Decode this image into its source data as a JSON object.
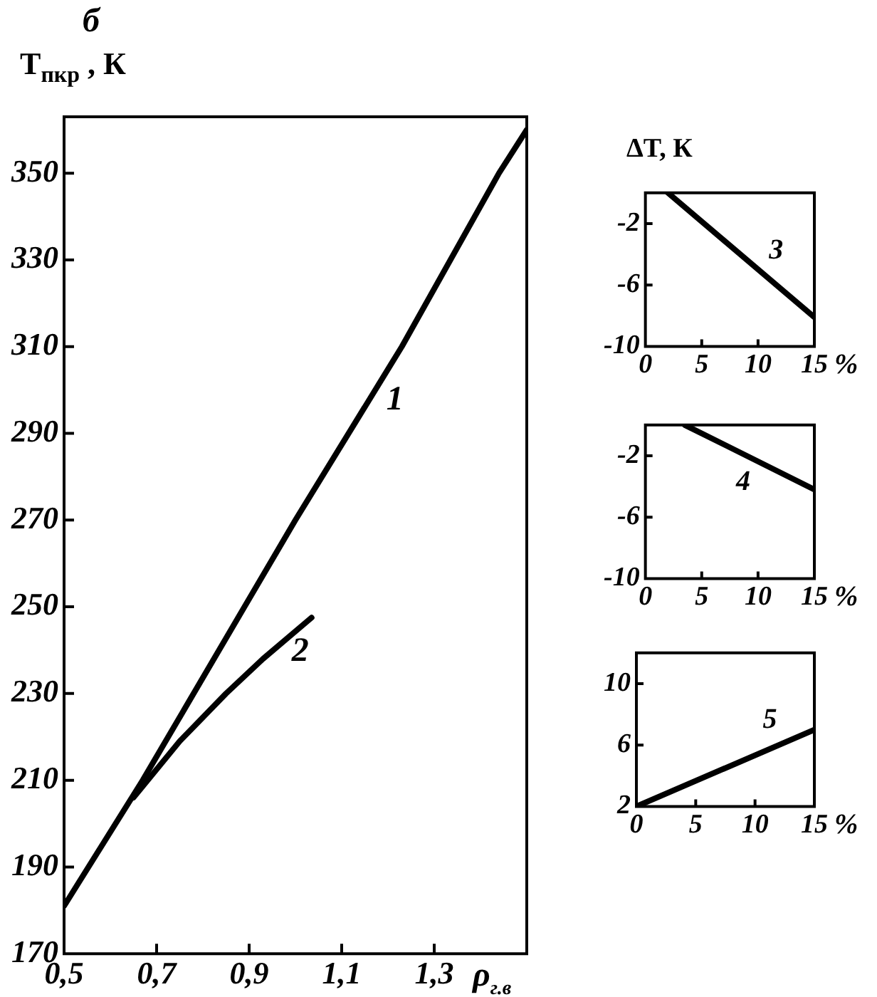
{
  "chart_data": [
    {
      "type": "line",
      "title": "б",
      "ylabel": "T$_{пкр}$ , К",
      "xlabel": "ρ$_{г.в}$",
      "xlim": [
        0.5,
        1.5
      ],
      "xticks": [
        {
          "value": 0.5,
          "label": "0,5"
        },
        {
          "value": 0.7,
          "label": "0,7"
        },
        {
          "value": 0.9,
          "label": "0,9"
        },
        {
          "value": 1.1,
          "label": "1,1"
        },
        {
          "value": 1.3,
          "label": "1,3"
        }
      ],
      "ylim": [
        170,
        363
      ],
      "yticks": [
        170,
        190,
        210,
        230,
        250,
        270,
        290,
        310,
        330,
        350
      ],
      "grid": false,
      "legend": false,
      "marker": "none",
      "series": [
        {
          "name": "1",
          "color": "#000000",
          "x": [
            0.5,
            0.67,
            0.89,
            1.0,
            1.23,
            1.44,
            1.5
          ],
          "values": [
            181,
            210,
            250,
            270,
            310,
            350,
            360
          ]
        },
        {
          "name": "2",
          "color": "#000000",
          "x": [
            0.65,
            0.75,
            0.85,
            0.93,
            1.035
          ],
          "values": [
            206,
            219,
            230,
            238,
            247.5
          ]
        }
      ]
    },
    {
      "type": "line",
      "ylabel": "ΔT, К",
      "xlabel": "%",
      "xlim": [
        0,
        15
      ],
      "xticks": [
        0,
        5,
        10,
        15
      ],
      "ylim": [
        -10,
        0
      ],
      "yticks": [
        -10,
        -6,
        -2
      ],
      "grid": false,
      "legend": false,
      "marker": "none",
      "series": [
        {
          "name": "3",
          "color": "#000000",
          "x": [
            2,
            15
          ],
          "values": [
            0,
            -8.1
          ]
        }
      ]
    },
    {
      "type": "line",
      "xlabel": "%",
      "xlim": [
        0,
        15
      ],
      "xticks": [
        0,
        5,
        10,
        15
      ],
      "ylim": [
        -10,
        0
      ],
      "yticks": [
        -10,
        -6,
        -2
      ],
      "grid": false,
      "legend": false,
      "marker": "none",
      "series": [
        {
          "name": "4",
          "color": "#000000",
          "x": [
            3.5,
            15
          ],
          "values": [
            0,
            -4.2
          ]
        }
      ]
    },
    {
      "type": "line",
      "xlabel": "%",
      "xlim": [
        0,
        15
      ],
      "xticks": [
        0,
        5,
        10,
        15
      ],
      "ylim": [
        2,
        12
      ],
      "yticks": [
        2,
        6,
        10
      ],
      "grid": false,
      "legend": false,
      "marker": "none",
      "series": [
        {
          "name": "5",
          "color": "#000000",
          "x": [
            0,
            15
          ],
          "values": [
            2,
            7
          ]
        }
      ]
    }
  ]
}
